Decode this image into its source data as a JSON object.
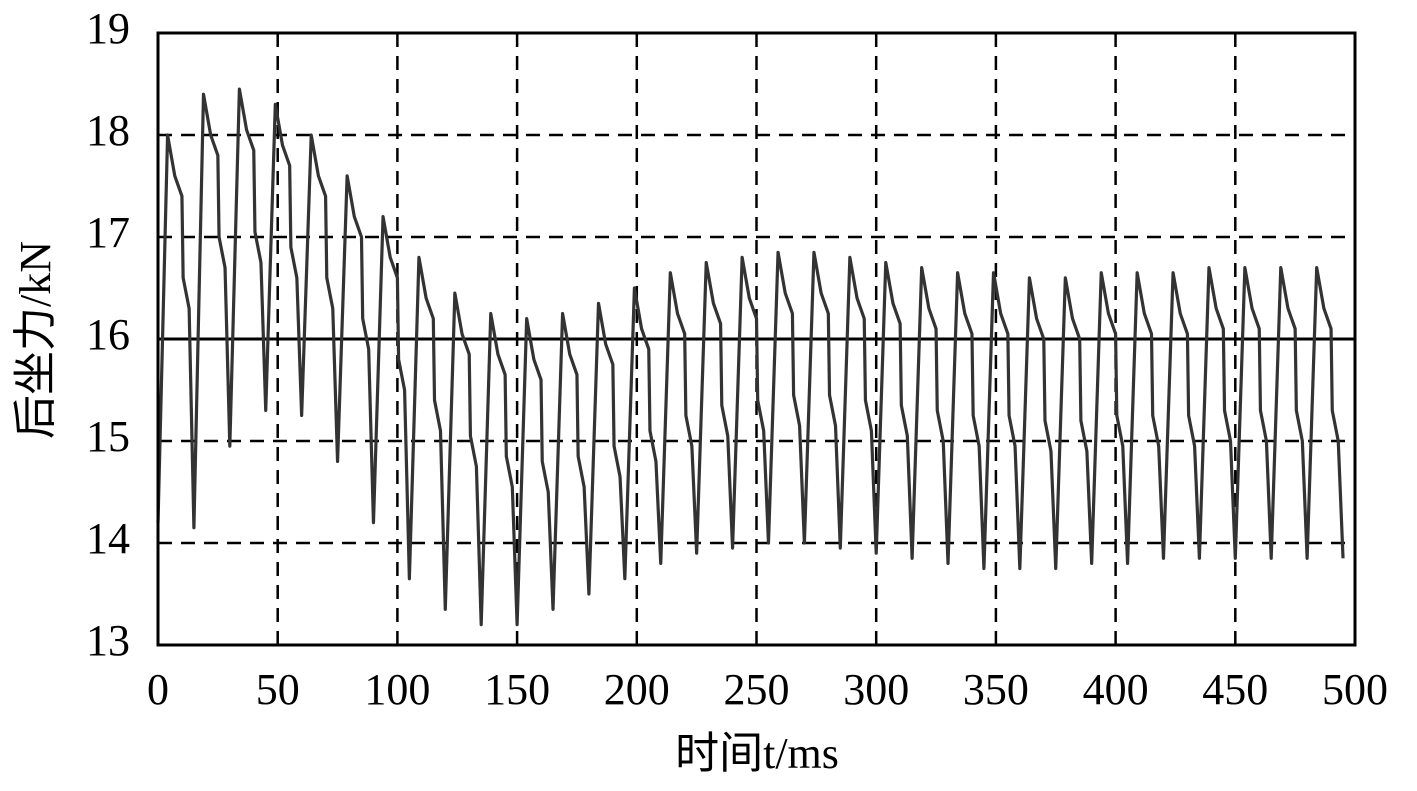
{
  "chart_data": {
    "type": "line",
    "xlabel": "时间t/ms",
    "ylabel": "后坐力/kN",
    "color": "#333333",
    "grid": true,
    "hline": 16,
    "xlim": [
      0,
      500
    ],
    "ylim": [
      13,
      19
    ],
    "xticks": [
      0,
      50,
      100,
      150,
      200,
      250,
      300,
      350,
      400,
      450,
      500
    ],
    "yticks": [
      13,
      14,
      15,
      16,
      17,
      18,
      19
    ],
    "x": [
      0,
      4,
      7,
      10,
      10.5,
      13,
      15,
      19,
      22,
      25,
      25.5,
      28,
      30,
      34,
      37,
      40,
      40.5,
      43,
      45,
      49,
      52,
      55,
      55.5,
      58,
      60,
      64,
      67,
      70,
      70.5,
      73,
      75,
      79,
      82,
      85,
      85.5,
      88,
      90,
      94,
      97,
      100,
      100.5,
      103,
      105,
      109,
      112,
      115,
      115.5,
      118,
      120,
      124,
      127,
      130,
      130.5,
      133,
      135,
      139,
      142,
      145,
      145.5,
      148,
      150,
      154,
      157,
      160,
      160.5,
      163,
      165,
      169,
      172,
      175,
      175.5,
      178,
      180,
      184,
      187,
      190,
      190.5,
      193,
      195,
      199,
      202,
      205,
      205.5,
      208,
      210,
      214,
      217,
      220,
      220.5,
      223,
      225,
      229,
      232,
      235,
      235.5,
      238,
      240,
      244,
      247,
      250,
      250.5,
      253,
      255,
      259,
      262,
      265,
      265.5,
      268,
      270,
      274,
      277,
      280,
      280.5,
      283,
      285,
      289,
      292,
      295,
      295.5,
      298,
      300,
      304,
      307,
      310,
      310.5,
      313,
      315,
      319,
      322,
      325,
      325.5,
      328,
      330,
      334,
      337,
      340,
      340.5,
      343,
      345,
      349,
      352,
      355,
      355.5,
      358,
      360,
      364,
      367,
      370,
      370.5,
      373,
      375,
      379,
      382,
      385,
      385.5,
      388,
      390,
      394,
      397,
      400,
      400.5,
      403,
      405,
      409,
      412,
      415,
      415.5,
      418,
      420,
      424,
      427,
      430,
      430.5,
      433,
      435,
      439,
      442,
      445,
      445.5,
      448,
      450,
      454,
      457,
      460,
      460.5,
      463,
      465,
      469,
      472,
      475,
      475.5,
      478,
      480,
      484,
      487,
      490,
      490.5,
      493,
      495
    ],
    "values": [
      14.2,
      18.0,
      17.6,
      17.4,
      16.6,
      16.3,
      14.15,
      18.4,
      18.0,
      17.8,
      17.0,
      16.7,
      14.95,
      18.45,
      18.05,
      17.85,
      17.05,
      16.75,
      15.3,
      18.3,
      17.9,
      17.7,
      16.9,
      16.6,
      15.25,
      18.0,
      17.6,
      17.4,
      16.6,
      16.3,
      14.8,
      17.6,
      17.2,
      17.0,
      16.2,
      15.9,
      14.2,
      17.2,
      16.8,
      16.6,
      15.8,
      15.5,
      13.65,
      16.8,
      16.4,
      16.2,
      15.4,
      15.1,
      13.35,
      16.45,
      16.05,
      15.85,
      15.05,
      14.75,
      13.2,
      16.25,
      15.85,
      15.65,
      14.85,
      14.55,
      13.2,
      16.2,
      15.8,
      15.6,
      14.8,
      14.5,
      13.35,
      16.25,
      15.85,
      15.65,
      14.85,
      14.55,
      13.5,
      16.35,
      15.95,
      15.75,
      14.95,
      14.65,
      13.65,
      16.5,
      16.1,
      15.9,
      15.1,
      14.8,
      13.8,
      16.65,
      16.25,
      16.05,
      15.25,
      14.95,
      13.9,
      16.75,
      16.35,
      16.15,
      15.35,
      15.05,
      13.95,
      16.8,
      16.4,
      16.2,
      15.4,
      15.1,
      14.0,
      16.85,
      16.45,
      16.25,
      15.45,
      15.15,
      14.0,
      16.85,
      16.45,
      16.25,
      15.45,
      15.15,
      13.95,
      16.8,
      16.4,
      16.2,
      15.4,
      15.1,
      13.9,
      16.75,
      16.35,
      16.15,
      15.35,
      15.05,
      13.85,
      16.7,
      16.3,
      16.1,
      15.3,
      15.0,
      13.8,
      16.65,
      16.25,
      16.05,
      15.25,
      14.95,
      13.75,
      16.65,
      16.25,
      16.05,
      15.25,
      14.95,
      13.75,
      16.6,
      16.2,
      16.0,
      15.2,
      14.9,
      13.75,
      16.6,
      16.2,
      16.0,
      15.2,
      14.9,
      13.8,
      16.65,
      16.25,
      16.05,
      15.25,
      14.95,
      13.8,
      16.65,
      16.25,
      16.05,
      15.25,
      14.95,
      13.85,
      16.65,
      16.25,
      16.05,
      15.25,
      14.95,
      13.85,
      16.7,
      16.3,
      16.1,
      15.3,
      15.0,
      13.85,
      16.7,
      16.3,
      16.1,
      15.3,
      15.0,
      13.85,
      16.7,
      16.3,
      16.1,
      15.3,
      15.0,
      13.85,
      16.7,
      16.3,
      16.1,
      15.3,
      15.0,
      13.85
    ]
  }
}
